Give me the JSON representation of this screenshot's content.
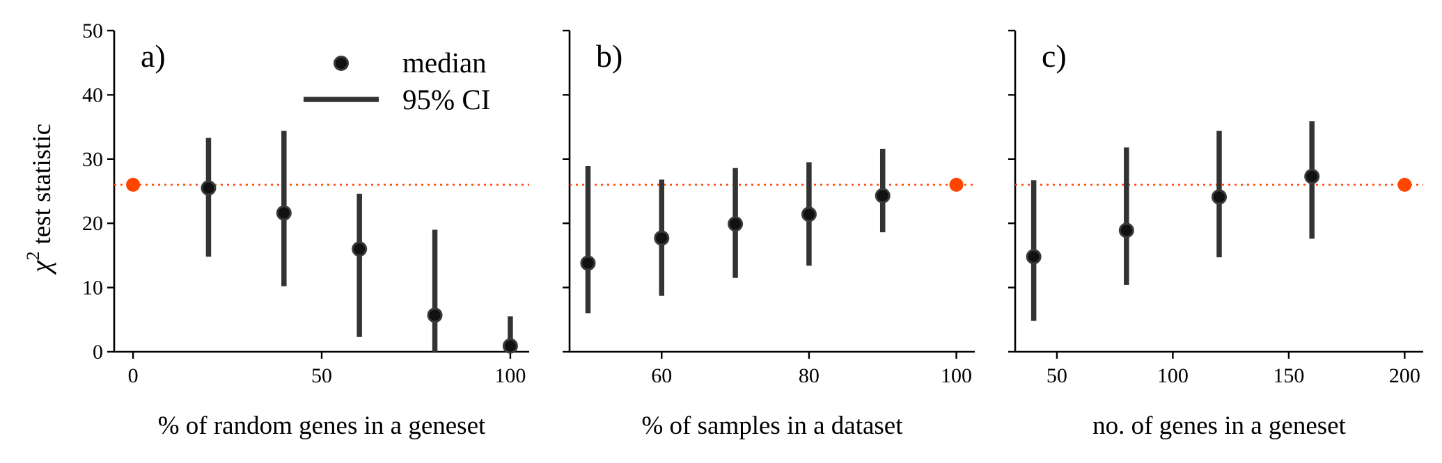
{
  "chart_data": {
    "type": "scatter",
    "shared_y": {
      "label": "test statistic",
      "label_symbol": "χ",
      "label_superscript": "2",
      "ylim": [
        0,
        50
      ],
      "yticks": [
        0,
        10,
        20,
        30,
        40,
        50
      ]
    },
    "colors": {
      "point": "#111111",
      "errorbar": "#333333",
      "reference": "#ff4500"
    },
    "legend": {
      "location": "upper-right of panel a",
      "entries": [
        {
          "label": "median",
          "marker": "circle"
        },
        {
          "label": "95% CI",
          "marker": "line"
        }
      ]
    },
    "panels": [
      {
        "label": "a)",
        "xlabel": "% of random genes in a geneset",
        "xlim": [
          -5,
          105
        ],
        "xticks": [
          0,
          50,
          100
        ],
        "reference": {
          "x": 0,
          "y": 26
        },
        "points": [
          {
            "x": 20,
            "median": 25.5,
            "ci_low": 14.8,
            "ci_high": 33.3
          },
          {
            "x": 40,
            "median": 21.6,
            "ci_low": 10.2,
            "ci_high": 34.4
          },
          {
            "x": 60,
            "median": 16.0,
            "ci_low": 2.3,
            "ci_high": 24.6
          },
          {
            "x": 80,
            "median": 5.7,
            "ci_low": 0.0,
            "ci_high": 19.0
          },
          {
            "x": 100,
            "median": 0.9,
            "ci_low": 0.0,
            "ci_high": 5.5
          }
        ]
      },
      {
        "label": "b)",
        "xlabel": "% of samples in a dataset",
        "xlim": [
          47.5,
          102.5
        ],
        "xticks": [
          60,
          80,
          100
        ],
        "reference": {
          "x": 100,
          "y": 26
        },
        "points": [
          {
            "x": 50,
            "median": 13.8,
            "ci_low": 6.0,
            "ci_high": 28.9
          },
          {
            "x": 60,
            "median": 17.7,
            "ci_low": 8.7,
            "ci_high": 26.8
          },
          {
            "x": 70,
            "median": 19.9,
            "ci_low": 11.5,
            "ci_high": 28.6
          },
          {
            "x": 80,
            "median": 21.4,
            "ci_low": 13.4,
            "ci_high": 29.5
          },
          {
            "x": 90,
            "median": 24.3,
            "ci_low": 18.6,
            "ci_high": 31.6
          }
        ]
      },
      {
        "label": "c)",
        "xlabel": "no. of genes in a geneset",
        "xlim": [
          32,
          208
        ],
        "xticks": [
          50,
          100,
          150,
          200
        ],
        "reference": {
          "x": 200,
          "y": 26
        },
        "points": [
          {
            "x": 40,
            "median": 14.8,
            "ci_low": 4.8,
            "ci_high": 26.7
          },
          {
            "x": 80,
            "median": 18.9,
            "ci_low": 10.4,
            "ci_high": 31.8
          },
          {
            "x": 120,
            "median": 24.1,
            "ci_low": 14.7,
            "ci_high": 34.4
          },
          {
            "x": 160,
            "median": 27.3,
            "ci_low": 17.6,
            "ci_high": 35.9
          }
        ]
      }
    ]
  }
}
